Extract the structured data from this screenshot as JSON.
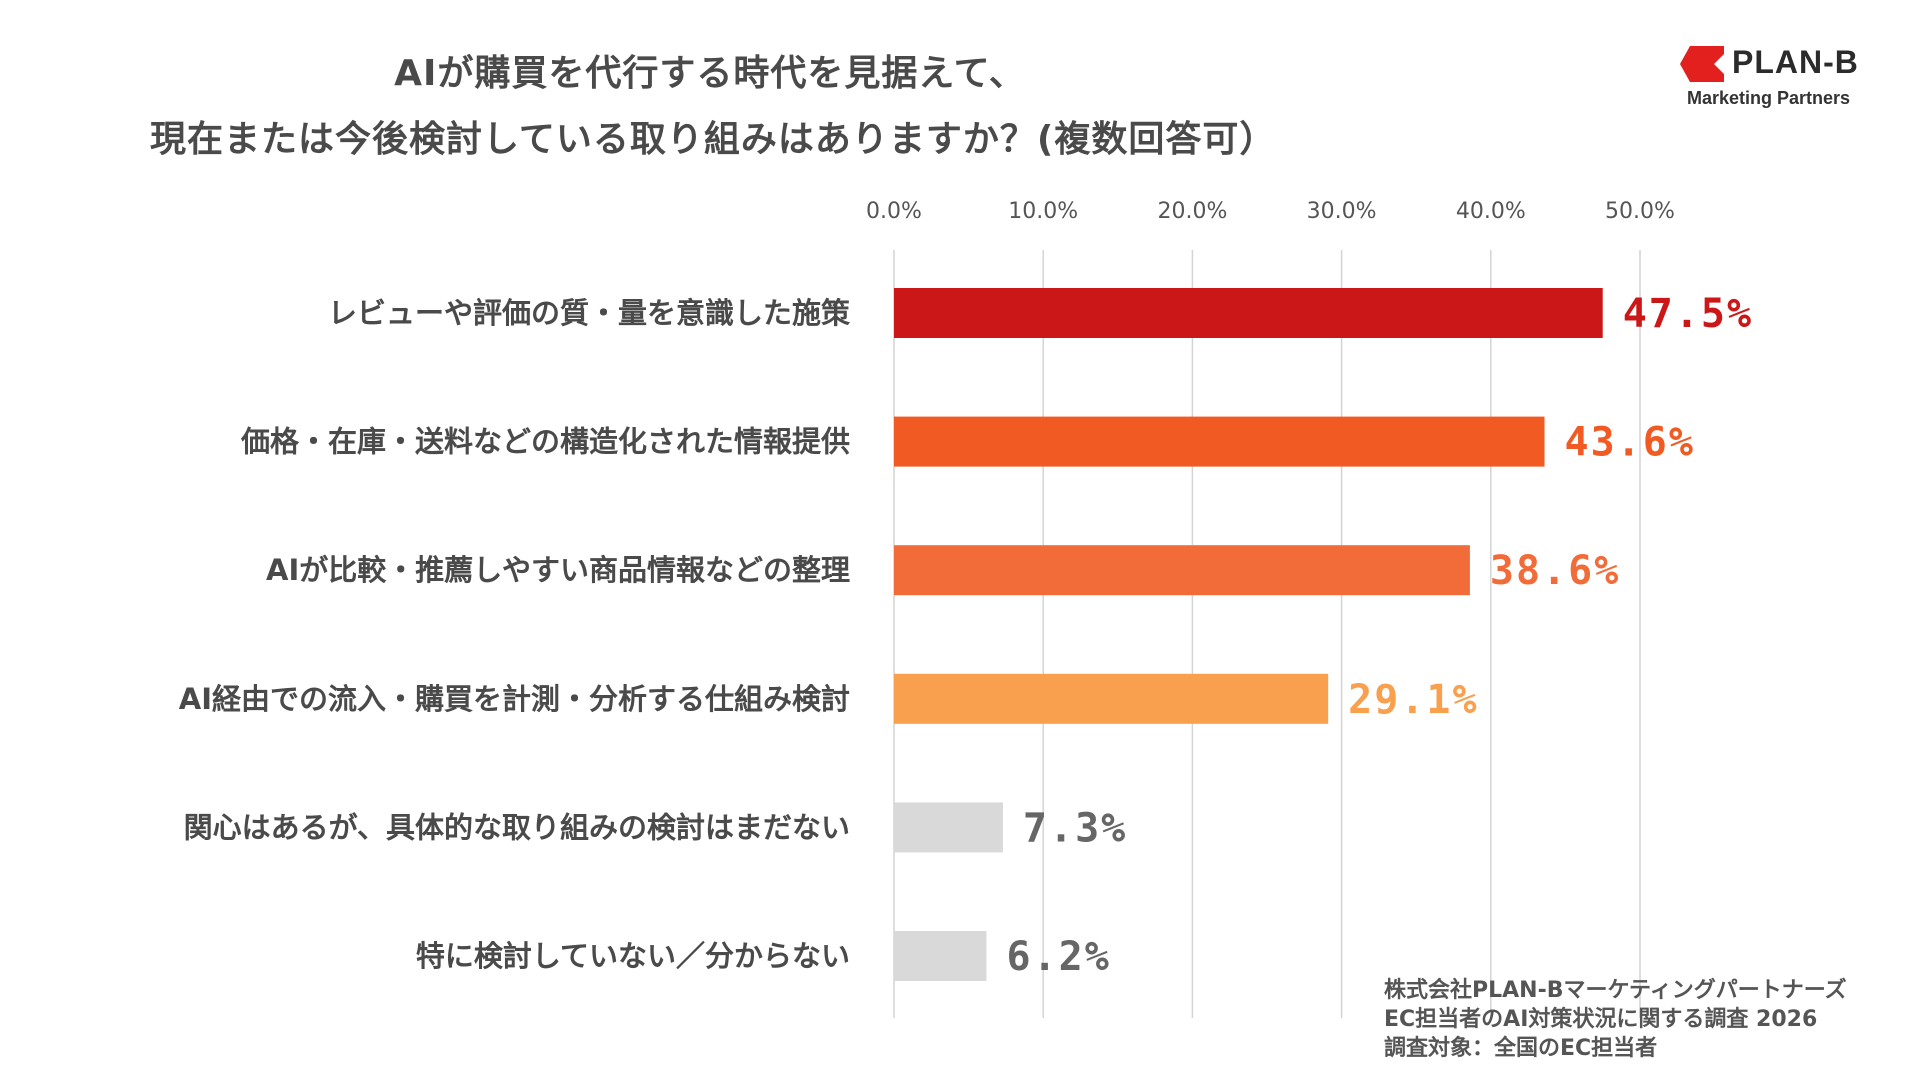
{
  "chart_data": {
    "type": "bar",
    "orientation": "horizontal",
    "title": "AIが購買を代行する時代を見据えて、",
    "title_line_2": "現在または今後検討している取り組みはありますか？(複数回答可）",
    "xlabel": "",
    "ylabel": "",
    "xlim": [
      0,
      50
    ],
    "x_ticks": [
      "0.0%",
      "10.0%",
      "20.0%",
      "30.0%",
      "40.0%",
      "50.0%"
    ],
    "grid": true,
    "categories": [
      "レビューや評価の質・量を意識した施策",
      "価格・在庫・送料などの構造化された情報提供",
      "AIが比較・推薦しやすい商品情報などの整理",
      "AI経由での流入・購買を計測・分析する仕組み検討",
      "関心はあるが、具体的な取り組みの検討はまだない",
      "特に検討していない／分からない"
    ],
    "values": [
      47.5,
      43.6,
      38.6,
      29.1,
      7.3,
      6.2
    ],
    "value_labels": [
      "47.5%",
      "43.6%",
      "38.6%",
      "29.1%",
      "7.3%",
      "6.2%"
    ],
    "bar_colors": [
      "#cc1719",
      "#f15a22",
      "#f26c3a",
      "#f8a04e",
      "#d9d9d9",
      "#d9d9d9"
    ],
    "label_colors": [
      "#cc1719",
      "#f15a22",
      "#f26c3a",
      "#f8a04e",
      "#666666",
      "#666666"
    ]
  },
  "logo": {
    "name": "PLAN-B",
    "subtitle": "Marketing Partners",
    "brand_color": "#e2201d"
  },
  "source": {
    "line1": "株式会社PLAN-Bマーケティングパートナーズ",
    "line2": "EC担当者のAI対策状況に関する調査 2026",
    "line3": "調査対象：全国のEC担当者"
  }
}
